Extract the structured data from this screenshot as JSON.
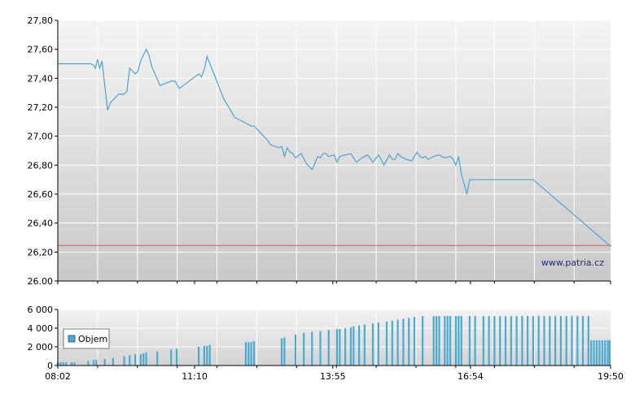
{
  "credit": "www.patria.cz",
  "colors": {
    "price_line": "#4fa3d1",
    "reference_line": "#d9534f",
    "volume_bar": "#4ba9d2",
    "grid": "#ffffff"
  },
  "chart_data": [
    {
      "type": "line",
      "title": "",
      "xlabel": "",
      "ylabel": "",
      "ylim": [
        26.0,
        27.8
      ],
      "yticks": [
        "26.00",
        "26,20",
        "26,40",
        "26,60",
        "26,80",
        "27,00",
        "27,20",
        "27,40",
        "27,60",
        "27,80"
      ],
      "ytick_values": [
        26.0,
        26.2,
        26.4,
        26.6,
        26.8,
        27.0,
        27.2,
        27.4,
        27.6,
        27.8
      ],
      "grid": true,
      "reference_line": 26.245,
      "series": [
        {
          "x": [
            0.0,
            0.06,
            0.065,
            0.068,
            0.072,
            0.076,
            0.08,
            0.09,
            0.095,
            0.11,
            0.12,
            0.125,
            0.13,
            0.14,
            0.145,
            0.15,
            0.16,
            0.165,
            0.17,
            0.185,
            0.205,
            0.21,
            0.212,
            0.22,
            0.255,
            0.26,
            0.265,
            0.27,
            0.3,
            0.32,
            0.345,
            0.35,
            0.355,
            0.38,
            0.385,
            0.4,
            0.405,
            0.41,
            0.415,
            0.42,
            0.425,
            0.43,
            0.44,
            0.45,
            0.46,
            0.465,
            0.47,
            0.475,
            0.48,
            0.485,
            0.49,
            0.5,
            0.505,
            0.51,
            0.53,
            0.535,
            0.54,
            0.55,
            0.56,
            0.565,
            0.57,
            0.58,
            0.585,
            0.59,
            0.6,
            0.605,
            0.61,
            0.615,
            0.62,
            0.63,
            0.64,
            0.645,
            0.65,
            0.655,
            0.66,
            0.665,
            0.67,
            0.68,
            0.69,
            0.7,
            0.71,
            0.715,
            0.72,
            0.725,
            0.73,
            0.74,
            0.745,
            0.75,
            0.76,
            0.765,
            0.77,
            0.785,
            0.86,
            1.0
          ],
          "y": [
            27.5,
            27.5,
            27.49,
            27.47,
            27.53,
            27.47,
            27.52,
            27.18,
            27.23,
            27.29,
            27.29,
            27.31,
            27.47,
            27.43,
            27.45,
            27.52,
            27.6,
            27.56,
            27.48,
            27.35,
            27.38,
            27.38,
            27.38,
            27.33,
            27.43,
            27.41,
            27.46,
            27.55,
            27.26,
            27.13,
            27.08,
            27.07,
            27.07,
            26.97,
            26.94,
            26.92,
            26.93,
            26.86,
            26.92,
            26.89,
            26.88,
            26.85,
            26.88,
            26.81,
            26.77,
            26.81,
            26.86,
            26.85,
            26.88,
            26.88,
            26.86,
            26.87,
            26.82,
            26.86,
            26.88,
            26.85,
            26.82,
            26.85,
            26.87,
            26.85,
            26.82,
            26.87,
            26.84,
            26.8,
            26.87,
            26.84,
            26.84,
            26.88,
            26.86,
            26.84,
            26.83,
            26.86,
            26.89,
            26.86,
            26.85,
            26.86,
            26.84,
            26.86,
            26.87,
            26.85,
            26.86,
            26.84,
            26.8,
            26.86,
            26.74,
            26.6,
            26.7,
            26.7,
            26.7,
            26.7,
            26.7,
            26.7,
            26.7,
            26.24
          ]
        }
      ]
    },
    {
      "type": "bar",
      "title": "",
      "xlabel": "",
      "ylabel": "",
      "ylim": [
        0,
        6000
      ],
      "yticks": [
        "0",
        "2 000",
        "4 000",
        "6 000"
      ],
      "ytick_values": [
        0,
        2000,
        4000,
        6000
      ],
      "xticks": [
        "08:02",
        "11:10",
        "13:55",
        "16:54",
        "19:50"
      ],
      "legend": {
        "label": "Objem",
        "placement": "left"
      },
      "grid": true,
      "series": [
        {
          "name": "Objem",
          "x": [
            0.0,
            0.005,
            0.01,
            0.015,
            0.025,
            0.03,
            0.055,
            0.065,
            0.07,
            0.085,
            0.1,
            0.12,
            0.13,
            0.14,
            0.15,
            0.155,
            0.16,
            0.18,
            0.205,
            0.215,
            0.255,
            0.265,
            0.27,
            0.275,
            0.34,
            0.345,
            0.35,
            0.355,
            0.405,
            0.41,
            0.43,
            0.445,
            0.46,
            0.475,
            0.49,
            0.505,
            0.51,
            0.52,
            0.53,
            0.535,
            0.545,
            0.555,
            0.57,
            0.58,
            0.595,
            0.605,
            0.615,
            0.625,
            0.635,
            0.645,
            0.66,
            0.68,
            0.685,
            0.69,
            0.7,
            0.705,
            0.71,
            0.72,
            0.725,
            0.73,
            0.745,
            0.755,
            0.77,
            0.78,
            0.79,
            0.8,
            0.81,
            0.82,
            0.83,
            0.84,
            0.85,
            0.86,
            0.87,
            0.88,
            0.89,
            0.9,
            0.91,
            0.92,
            0.93,
            0.94,
            0.95,
            0.96,
            0.965,
            0.97,
            0.975,
            0.98,
            0.985,
            0.99,
            0.995,
            1.0
          ],
          "values": [
            350,
            350,
            350,
            350,
            350,
            350,
            500,
            600,
            600,
            700,
            800,
            1000,
            1100,
            1200,
            1200,
            1300,
            1400,
            1500,
            1700,
            1800,
            2000,
            2100,
            2100,
            2200,
            2500,
            2500,
            2500,
            2600,
            2900,
            3000,
            3300,
            3500,
            3600,
            3700,
            3800,
            3900,
            3900,
            4000,
            4100,
            4200,
            4300,
            4400,
            4500,
            4600,
            4700,
            4800,
            4900,
            5000,
            5100,
            5200,
            5300,
            5300,
            5300,
            5300,
            5300,
            5300,
            5300,
            5300,
            5300,
            5300,
            5300,
            5300,
            5300,
            5300,
            5300,
            5300,
            5300,
            5300,
            5300,
            5300,
            5300,
            5300,
            5300,
            5300,
            5300,
            5300,
            5300,
            5300,
            5300,
            5300,
            5300,
            5300,
            2700,
            2700,
            2700,
            2700,
            2700,
            2700,
            2700,
            2700
          ]
        }
      ]
    }
  ]
}
